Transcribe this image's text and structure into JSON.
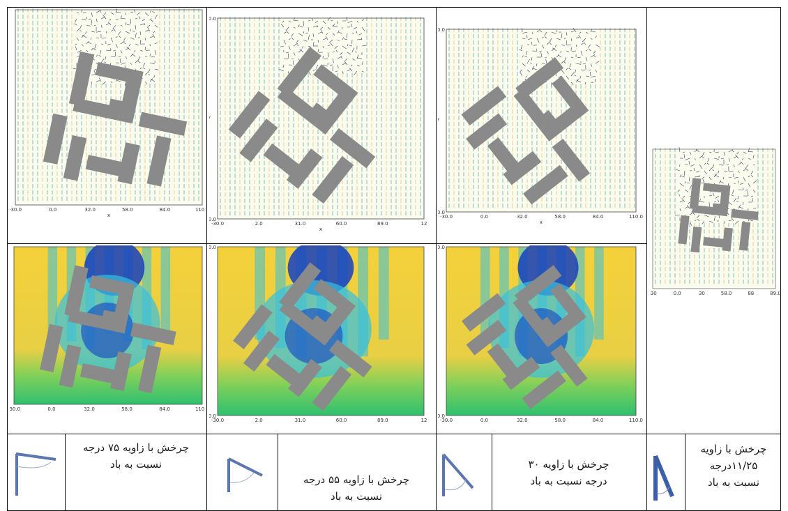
{
  "top_row": [
    {
      "ticks_x": [
        "-30.0",
        "0.0",
        "32.0",
        "58.0",
        "84.0",
        "110.0"
      ],
      "axis_x": "x"
    },
    {
      "ticks_x": [
        "-30.0",
        "2.0",
        "31.0",
        "60.0",
        "89.0",
        "12"
      ],
      "ticks_y": [
        "120.0",
        "-30.0"
      ],
      "axis_x": "x",
      "axis_y": "y"
    },
    {
      "ticks_x": [
        "-30.0",
        "0.0",
        "32.0",
        "58.0",
        "84.0",
        "110.0"
      ],
      "ticks_y": [
        "110.0",
        "-30.0"
      ],
      "axis_x": "x",
      "axis_y": "y"
    }
  ],
  "bottom_row": [
    {
      "ticks_x": [
        "-30.0",
        "0.0",
        "32.0",
        "58.0",
        "84.0",
        "110.0"
      ]
    },
    {
      "ticks_x": [
        "-30.0",
        "2.0",
        "31.0",
        "60.0",
        "89.0",
        "12"
      ],
      "ticks_y": [
        "120.0",
        "-30.0"
      ]
    },
    {
      "ticks_x": [
        "-30.0",
        "0.0",
        "32.0",
        "58.0",
        "84.0",
        "110.0"
      ],
      "ticks_y": [
        "110.0",
        "-30.0"
      ]
    }
  ],
  "side_plot": {
    "ticks_x": [
      "-30",
      "0.0",
      "30",
      "58.0",
      "88",
      "89.0"
    ]
  },
  "captions": [
    {
      "line1": "چرخش با زاویه ۷۵ درجه",
      "line2": "نسبت به باد"
    },
    {
      "line1": "چرخش با زاویه ۵۵ درجه",
      "line2": "نسبت به باد"
    },
    {
      "line1": "چرخش با زاویه ۳۰",
      "line2": "درجه نسبت به باد"
    },
    {
      "line1": "چرخش با زاویه",
      "line2": "۱۱/۲۵درجه",
      "line3": "نسبت به باد"
    }
  ],
  "colors": {
    "building": "#8a8a8a",
    "vector": "#2a9a9a",
    "contour_hot": "#f4d13a",
    "contour_mid": "#36c0e0",
    "contour_cold": "#1540c0",
    "icon_blue": "#3b5fa8"
  }
}
